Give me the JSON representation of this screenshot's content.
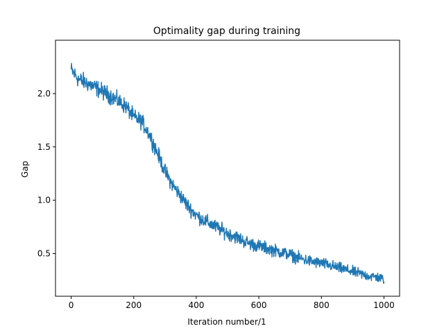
{
  "chart_data": {
    "type": "line",
    "title": "Optimality gap during training",
    "xlabel": "Iteration number/1",
    "ylabel": "Gap",
    "xlim": [
      -50,
      1050
    ],
    "ylim": [
      0.1,
      2.5
    ],
    "xticks": [
      0,
      200,
      400,
      600,
      800,
      1000
    ],
    "xtick_labels": [
      "0",
      "200",
      "400",
      "600",
      "800",
      "1000"
    ],
    "yticks": [
      0.5,
      1.0,
      1.5,
      2.0
    ],
    "ytick_labels": [
      "0.5",
      "1.0",
      "1.5",
      "2.0"
    ],
    "grid": false,
    "series": [
      {
        "color": "#1f77b4",
        "x": [
          0,
          25,
          50,
          75,
          100,
          125,
          150,
          175,
          200,
          225,
          250,
          275,
          300,
          325,
          350,
          375,
          400,
          425,
          450,
          475,
          500,
          525,
          550,
          575,
          600,
          625,
          650,
          675,
          700,
          725,
          750,
          775,
          800,
          825,
          850,
          875,
          900,
          925,
          950,
          975,
          1000
        ],
        "y": [
          2.22,
          2.13,
          2.1,
          2.06,
          2.02,
          1.98,
          1.93,
          1.88,
          1.78,
          1.74,
          1.62,
          1.45,
          1.27,
          1.14,
          1.04,
          0.94,
          0.86,
          0.81,
          0.77,
          0.73,
          0.69,
          0.66,
          0.62,
          0.59,
          0.57,
          0.55,
          0.53,
          0.51,
          0.49,
          0.46,
          0.44,
          0.42,
          0.41,
          0.39,
          0.37,
          0.35,
          0.33,
          0.31,
          0.29,
          0.28,
          0.26
        ],
        "noise_amplitude": 0.05
      }
    ]
  }
}
